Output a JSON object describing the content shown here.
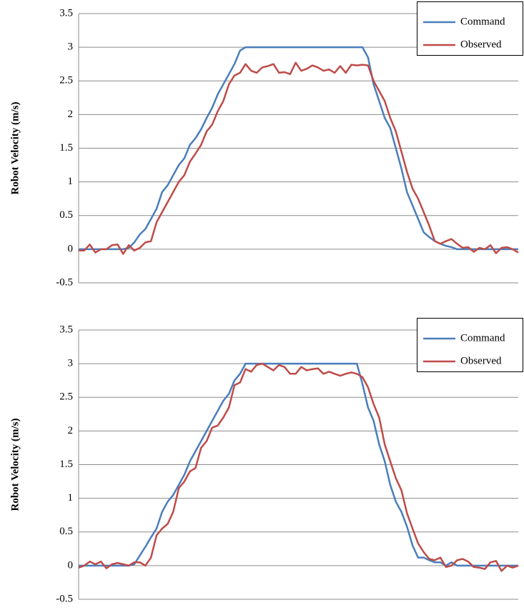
{
  "chart_data": [
    {
      "type": "line",
      "y_label": "Robot Velocity (m/s)",
      "ylim": [
        -0.5,
        3.5
      ],
      "yticks": [
        -0.5,
        0,
        0.5,
        1,
        1.5,
        2,
        2.5,
        3,
        3.5
      ],
      "grid": true,
      "legend": "top-right",
      "categories": [
        null,
        null,
        null,
        null,
        null,
        null,
        null,
        null,
        null,
        null,
        null,
        null,
        null,
        null,
        null,
        null,
        null,
        null,
        null,
        null,
        null,
        null,
        null,
        null,
        null,
        null,
        null,
        null,
        null,
        null,
        null,
        null,
        null,
        null,
        null,
        null,
        null,
        null,
        null,
        null,
        null,
        null,
        null,
        null,
        null,
        null,
        null,
        null,
        null,
        null,
        null,
        null,
        null,
        null,
        null,
        null,
        null,
        null,
        null,
        null,
        null,
        null,
        null,
        null,
        null,
        null,
        null,
        null,
        null,
        null,
        null,
        null,
        null,
        null,
        null,
        null,
        null,
        null,
        null,
        null
      ],
      "series": [
        {
          "name": "Command",
          "color": "#4a7ebb",
          "values": [
            0,
            0,
            0,
            0,
            0,
            0,
            0,
            0,
            0,
            0.02,
            0.1,
            0.22,
            0.3,
            0.45,
            0.6,
            0.85,
            0.95,
            1.1,
            1.25,
            1.35,
            1.55,
            1.65,
            1.78,
            1.95,
            2.1,
            2.3,
            2.45,
            2.6,
            2.75,
            2.95,
            3,
            3,
            3,
            3,
            3,
            3,
            3,
            3,
            3,
            3,
            3,
            3,
            3,
            3,
            3,
            3,
            3,
            3,
            3,
            3,
            3,
            3,
            2.85,
            2.45,
            2.2,
            1.95,
            1.8,
            1.5,
            1.2,
            0.85,
            0.65,
            0.45,
            0.25,
            0.18,
            0.12,
            0.08,
            0.05,
            0.03,
            0,
            0,
            0,
            0,
            0,
            0,
            0,
            0,
            0,
            0,
            0,
            0
          ]
        },
        {
          "name": "Observed",
          "color": "#be4b48",
          "values": [
            -0.02,
            -0.02,
            0.07,
            -0.05,
            0,
            0,
            0.06,
            0.07,
            -0.07,
            0.06,
            -0.02,
            0.02,
            0.1,
            0.12,
            0.4,
            0.55,
            0.7,
            0.85,
            1.0,
            1.1,
            1.3,
            1.42,
            1.55,
            1.75,
            1.85,
            2.05,
            2.2,
            2.45,
            2.58,
            2.62,
            2.75,
            2.65,
            2.62,
            2.7,
            2.72,
            2.75,
            2.62,
            2.63,
            2.6,
            2.77,
            2.65,
            2.68,
            2.73,
            2.7,
            2.65,
            2.67,
            2.62,
            2.72,
            2.62,
            2.74,
            2.73,
            2.74,
            2.73,
            2.5,
            2.35,
            2.2,
            1.95,
            1.75,
            1.45,
            1.15,
            0.9,
            0.75,
            0.55,
            0.35,
            0.12,
            0.08,
            0.12,
            0.15,
            0.08,
            0.02,
            0.03,
            -0.04,
            0.02,
            0,
            0.06,
            -0.06,
            0.02,
            0.03,
            0,
            -0.05
          ]
        }
      ]
    },
    {
      "type": "line",
      "y_label": "Robot Velocity (m/s)",
      "ylim": [
        -0.5,
        3.5
      ],
      "yticks": [
        -0.5,
        0,
        0.5,
        1,
        1.5,
        2,
        2.5,
        3,
        3.5
      ],
      "grid": true,
      "legend": "top-right",
      "categories": [
        null,
        null,
        null,
        null,
        null,
        null,
        null,
        null,
        null,
        null,
        null,
        null,
        null,
        null,
        null,
        null,
        null,
        null,
        null,
        null,
        null,
        null,
        null,
        null,
        null,
        null,
        null,
        null,
        null,
        null,
        null,
        null,
        null,
        null,
        null,
        null,
        null,
        null,
        null,
        null,
        null,
        null,
        null,
        null,
        null,
        null,
        null,
        null,
        null,
        null,
        null,
        null,
        null,
        null,
        null,
        null,
        null,
        null,
        null,
        null,
        null,
        null,
        null,
        null,
        null,
        null,
        null,
        null,
        null,
        null,
        null,
        null,
        null,
        null,
        null,
        null,
        null,
        null,
        null,
        null
      ],
      "series": [
        {
          "name": "Command",
          "color": "#4a7ebb",
          "values": [
            0,
            0,
            0,
            0,
            0,
            0,
            0,
            0,
            0,
            0,
            0.02,
            0.15,
            0.28,
            0.42,
            0.55,
            0.8,
            0.95,
            1.05,
            1.2,
            1.35,
            1.55,
            1.7,
            1.85,
            2.0,
            2.15,
            2.3,
            2.45,
            2.55,
            2.75,
            2.85,
            3,
            3,
            3,
            3,
            3,
            3,
            3,
            3,
            3,
            3,
            3,
            3,
            3,
            3,
            3,
            3,
            3,
            3,
            3,
            3,
            3,
            2.7,
            2.35,
            2.15,
            1.8,
            1.55,
            1.2,
            0.95,
            0.8,
            0.58,
            0.3,
            0.12,
            0.12,
            0.08,
            0.05,
            0.05,
            0,
            0.05,
            0,
            0,
            0,
            0,
            0,
            0,
            0,
            0,
            0,
            0,
            0,
            0
          ]
        },
        {
          "name": "Observed",
          "color": "#be4b48",
          "values": [
            -0.03,
            0,
            0.06,
            0.02,
            0.06,
            -0.04,
            0.02,
            0.04,
            0.02,
            0,
            0.05,
            0.05,
            0,
            0.12,
            0.45,
            0.55,
            0.62,
            0.8,
            1.15,
            1.25,
            1.4,
            1.45,
            1.75,
            1.85,
            2.05,
            2.08,
            2.2,
            2.35,
            2.68,
            2.72,
            2.92,
            2.88,
            2.98,
            3.0,
            2.95,
            2.9,
            2.98,
            2.95,
            2.85,
            2.85,
            2.95,
            2.9,
            2.92,
            2.93,
            2.85,
            2.88,
            2.85,
            2.82,
            2.85,
            2.87,
            2.85,
            2.8,
            2.65,
            2.4,
            2.2,
            1.8,
            1.55,
            1.3,
            1.12,
            0.78,
            0.55,
            0.33,
            0.2,
            0.1,
            0.08,
            0.12,
            -0.02,
            0,
            0.08,
            0.1,
            0.06,
            -0.02,
            -0.03,
            -0.05,
            0.05,
            0.07,
            -0.08,
            0,
            -0.03,
            0
          ]
        }
      ]
    }
  ]
}
